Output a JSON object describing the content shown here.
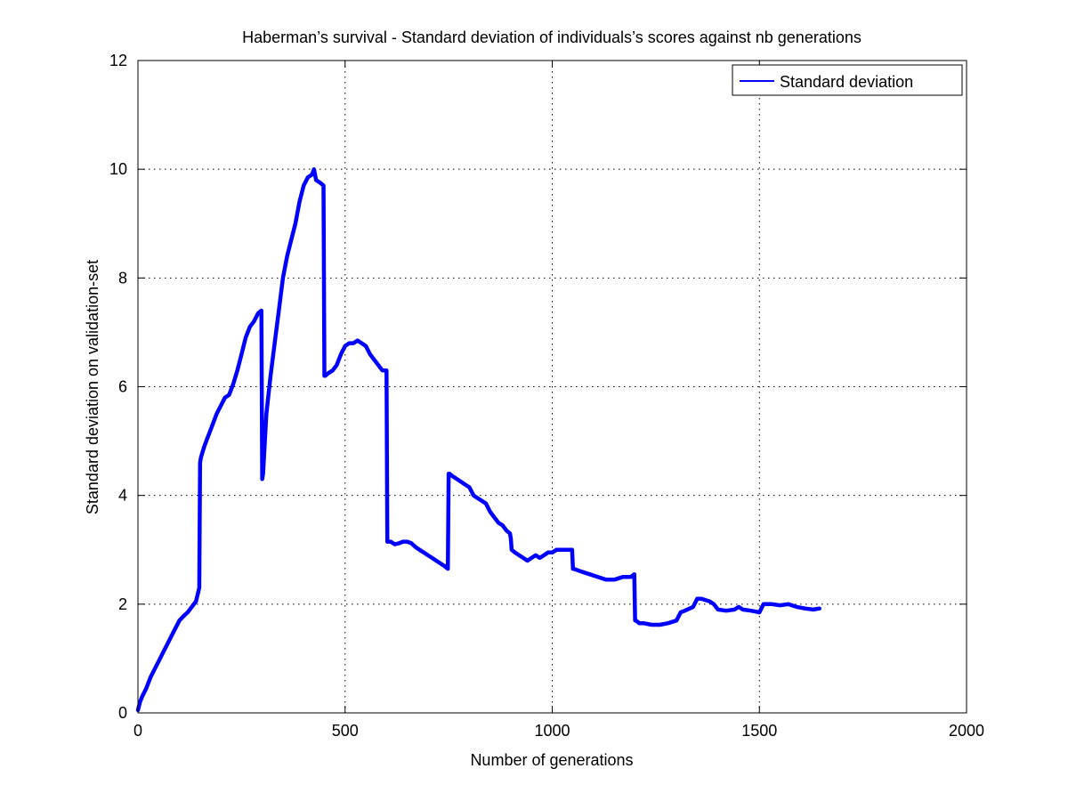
{
  "chart_data": {
    "type": "line",
    "title": "Haberman’s survival - Standard deviation of individuals’s scores against nb generations",
    "xlabel": "Number of generations",
    "ylabel": "Standard deviation on validation-set",
    "xlim": [
      0,
      2000
    ],
    "ylim": [
      0,
      12
    ],
    "xticks": [
      0,
      500,
      1000,
      1500,
      2000
    ],
    "xtick_labels": [
      "0",
      "500",
      "1000",
      "1500",
      "2000"
    ],
    "yticks": [
      0,
      2,
      4,
      6,
      8,
      10,
      12
    ],
    "ytick_labels": [
      "0",
      "2",
      "4",
      "6",
      "8",
      "10",
      "12"
    ],
    "grid": true,
    "legend": {
      "position": "top-right",
      "entries": [
        "Standard deviation"
      ]
    },
    "series": [
      {
        "name": "Standard deviation",
        "color": "#0000ff",
        "x": [
          0,
          5,
          10,
          20,
          30,
          40,
          50,
          60,
          70,
          80,
          90,
          100,
          110,
          120,
          130,
          140,
          148,
          150,
          152,
          160,
          170,
          180,
          190,
          200,
          210,
          220,
          230,
          240,
          250,
          260,
          270,
          280,
          290,
          298,
          300,
          302,
          310,
          320,
          330,
          340,
          350,
          360,
          370,
          380,
          390,
          400,
          410,
          420,
          425,
          430,
          440,
          448,
          450,
          452,
          460,
          470,
          480,
          490,
          500,
          510,
          520,
          530,
          540,
          550,
          560,
          570,
          580,
          590,
          598,
          600,
          602,
          610,
          620,
          630,
          640,
          650,
          660,
          670,
          680,
          690,
          700,
          710,
          720,
          730,
          740,
          748,
          750,
          752,
          760,
          770,
          780,
          790,
          800,
          810,
          820,
          830,
          840,
          850,
          860,
          870,
          880,
          890,
          898,
          900,
          902,
          910,
          920,
          930,
          940,
          950,
          960,
          970,
          980,
          990,
          1000,
          1010,
          1020,
          1030,
          1040,
          1048,
          1050,
          1052,
          1070,
          1090,
          1110,
          1130,
          1150,
          1170,
          1190,
          1198,
          1200,
          1202,
          1210,
          1220,
          1240,
          1260,
          1280,
          1300,
          1310,
          1320,
          1340,
          1350,
          1360,
          1380,
          1390,
          1400,
          1420,
          1440,
          1450,
          1460,
          1480,
          1500,
          1510,
          1530,
          1550,
          1570,
          1590,
          1610,
          1630,
          1645
        ],
        "values": [
          0.05,
          0.2,
          0.3,
          0.45,
          0.65,
          0.8,
          0.95,
          1.1,
          1.25,
          1.4,
          1.55,
          1.7,
          1.78,
          1.85,
          1.95,
          2.05,
          2.3,
          4.6,
          4.7,
          4.9,
          5.1,
          5.3,
          5.5,
          5.65,
          5.8,
          5.85,
          6.05,
          6.3,
          6.6,
          6.9,
          7.1,
          7.2,
          7.35,
          7.4,
          4.3,
          4.4,
          5.5,
          6.2,
          6.8,
          7.4,
          8.0,
          8.4,
          8.7,
          9.0,
          9.4,
          9.7,
          9.85,
          9.9,
          10.0,
          9.8,
          9.75,
          9.7,
          6.2,
          6.2,
          6.25,
          6.3,
          6.4,
          6.6,
          6.75,
          6.8,
          6.8,
          6.85,
          6.8,
          6.75,
          6.6,
          6.5,
          6.4,
          6.3,
          6.3,
          6.3,
          3.15,
          3.15,
          3.1,
          3.12,
          3.15,
          3.15,
          3.12,
          3.05,
          3.0,
          2.95,
          2.9,
          2.85,
          2.8,
          2.75,
          2.7,
          2.65,
          4.4,
          4.4,
          4.35,
          4.3,
          4.25,
          4.2,
          4.15,
          4.0,
          3.95,
          3.9,
          3.85,
          3.7,
          3.6,
          3.5,
          3.45,
          3.35,
          3.3,
          3.2,
          3.0,
          2.95,
          2.9,
          2.85,
          2.8,
          2.85,
          2.9,
          2.85,
          2.9,
          2.95,
          2.95,
          3.0,
          3.0,
          3.0,
          3.0,
          3.0,
          2.65,
          2.65,
          2.6,
          2.55,
          2.5,
          2.45,
          2.45,
          2.5,
          2.5,
          2.55,
          1.7,
          1.7,
          1.65,
          1.65,
          1.62,
          1.62,
          1.65,
          1.7,
          1.85,
          1.88,
          1.95,
          2.1,
          2.1,
          2.05,
          2.0,
          1.9,
          1.88,
          1.9,
          1.95,
          1.9,
          1.88,
          1.85,
          2.0,
          2.0,
          1.98,
          2.0,
          1.95,
          1.92,
          1.9,
          1.92
        ]
      }
    ]
  }
}
